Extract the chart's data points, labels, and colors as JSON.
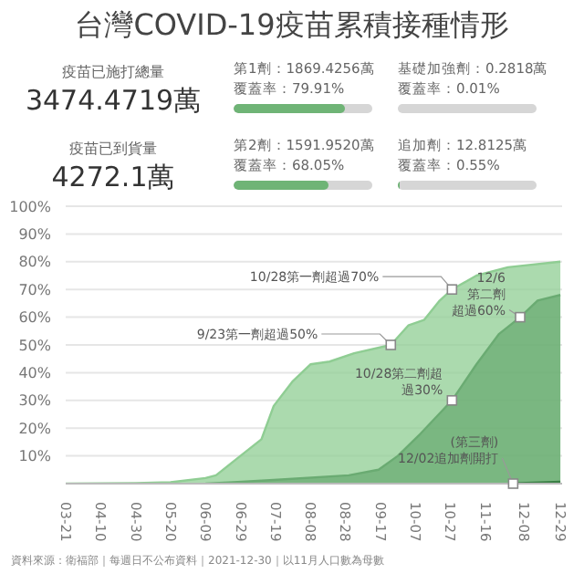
{
  "chart_data": [
    {
      "type": "other",
      "title": "台灣COVID-19疫苗累積接種情形",
      "annotations": [
        "疫苗已施打總量",
        "3474.4719萬",
        "疫苗已到貨量",
        "4272.1萬",
        "第1劑：1869.4256萬",
        "覆蓋率：",
        "基礎加強劑：0.2818萬",
        "覆蓋率：",
        "第2劑：1591.9520萬",
        "覆蓋率：",
        "追加劑：12.8125萬",
        "覆蓋率："
      ],
      "values": [
        79.91,
        0.01,
        68.05,
        0.55
      ],
      "value_labels": [
        "79.91%",
        "0.01%",
        "68.05%",
        "0.55%"
      ]
    },
    {
      "type": "area",
      "series": [
        {
          "color": "#8fcd93",
          "x": [
            "2021-03-21",
            "2021-04-10",
            "2021-04-30",
            "2021-05-20",
            "2021-06-09",
            "2021-06-15",
            "2021-06-25",
            "2021-07-11",
            "2021-07-18",
            "2021-07-29",
            "2021-08-08",
            "2021-08-19",
            "2021-09-02",
            "2021-09-23",
            "2021-10-03",
            "2021-10-12",
            "2021-10-21",
            "2021-10-28",
            "2021-11-11",
            "2021-11-29",
            "2021-12-29"
          ],
          "values": [
            0,
            0.1,
            0.2,
            0.5,
            2,
            3,
            8,
            16,
            28,
            37,
            43,
            44,
            47,
            50,
            57,
            59,
            66,
            70,
            75,
            78,
            80
          ]
        },
        {
          "color": "#6aab72",
          "x": [
            "2021-06-09",
            "2021-06-25",
            "2021-07-18",
            "2021-08-30",
            "2021-09-16",
            "2021-09-27",
            "2021-10-10",
            "2021-10-28",
            "2021-11-11",
            "2021-11-24",
            "2021-12-06",
            "2021-12-16",
            "2021-12-29"
          ],
          "values": [
            0,
            0.5,
            1.3,
            3,
            5,
            10,
            18,
            30,
            43,
            54,
            60,
            66,
            68
          ]
        },
        {
          "type": "line",
          "color": "#3a7f45",
          "x": [
            "2021-12-02",
            "2021-12-29"
          ],
          "values": [
            0,
            0.55
          ]
        }
      ],
      "xlim": [
        "2021-03-21",
        "2021-12-30"
      ],
      "xticks": [
        {
          "value": "2021-03-21",
          "label": "03-21"
        },
        {
          "value": "2021-04-10",
          "label": "04-10"
        },
        {
          "value": "2021-04-30",
          "label": "04-30"
        },
        {
          "value": "2021-05-20",
          "label": "05-20"
        },
        {
          "value": "2021-06-09",
          "label": "06-09"
        },
        {
          "value": "2021-06-29",
          "label": "06-29"
        },
        {
          "value": "2021-07-19",
          "label": "07-19"
        },
        {
          "value": "2021-08-08",
          "label": "08-08"
        },
        {
          "value": "2021-08-28",
          "label": "08-28"
        },
        {
          "value": "2021-09-17",
          "label": "09-17"
        },
        {
          "value": "2021-10-07",
          "label": "10-07"
        },
        {
          "value": "2021-10-27",
          "label": "10-27"
        },
        {
          "value": "2021-11-16",
          "label": "11-16"
        },
        {
          "value": "2021-12-08",
          "label": "12-08"
        },
        {
          "value": "2021-12-29",
          "label": "12-29"
        }
      ],
      "ylim": [
        0,
        100
      ],
      "yticks": [
        {
          "value": 0,
          "label": null
        },
        {
          "value": 10,
          "label": "10%"
        },
        {
          "value": 20,
          "label": "20%"
        },
        {
          "value": 30,
          "label": "30%"
        },
        {
          "value": 40,
          "label": "40%"
        },
        {
          "value": 50,
          "label": "50%"
        },
        {
          "value": 60,
          "label": "60%"
        },
        {
          "value": 70,
          "label": "70%"
        },
        {
          "value": 80,
          "label": "80%"
        },
        {
          "value": 90,
          "label": "90%"
        },
        {
          "value": 100,
          "label": "100%"
        }
      ],
      "grid": "y",
      "annotations": [
        {
          "text": "9/23第一劑超過50%",
          "x": "2021-09-23",
          "y": 50
        },
        {
          "text": "10/28第一劑超過70%",
          "x": "2021-10-28",
          "y": 70
        },
        {
          "text": "12/6第二劑超過60%",
          "x": "2021-12-06",
          "y": 60
        },
        {
          "text": "10/28第二劑超過30%",
          "x": "2021-10-28",
          "y": 30
        },
        {
          "text": "(第三劑)12/02追加劑開打",
          "x": "2021-12-02",
          "y": 0
        },
        "資料來源：衛福部｜每週日不公布資料｜2021-12-30｜以11月人口數為母數"
      ]
    }
  ]
}
